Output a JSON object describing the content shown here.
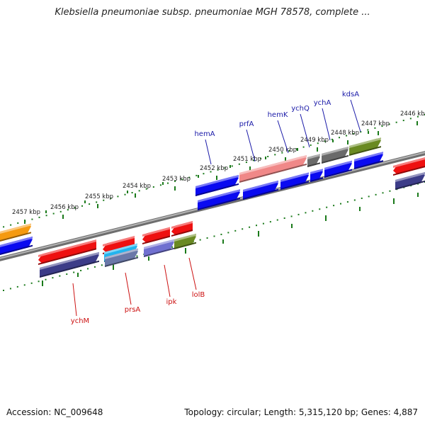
{
  "title": "Klebsiella pneumoniae subsp. pneumoniae MGH 78578, complete ...",
  "footer": {
    "accession": "Accession: NC_009648",
    "summary": "Topology: circular; Length: 5,315,120 bp; Genes: 4,887"
  },
  "colors": {
    "forward_label": "#1a1aa8",
    "reverse_label": "#cc1111",
    "tick": "#1a7a1a",
    "backbone": "#8a8a8a",
    "blue": "#0a0af0",
    "red": "#ee1111",
    "salmon": "#f08888",
    "gray": "#6a6a6a",
    "olive": "#6a8a22",
    "orange": "#f59a10",
    "navy": "#3c3c88",
    "cyan": "#22b4ee",
    "steel": "#6a78a8",
    "violet": "#7070d0"
  },
  "ticks": {
    "outer": [
      "2446 kbp",
      "2447 kbp",
      "2448 kbp",
      "2449 kbp",
      "2450 kbp",
      "2451 kbp",
      "2452 kbp"
    ],
    "inner": [
      "2453 kbp",
      "2454 kbp",
      "2455 kbp",
      "2456 kbp",
      "2457 kbp"
    ]
  },
  "forward_genes": [
    "hemA",
    "prfA",
    "hemK",
    "ychQ",
    "ychA",
    "kdsA"
  ],
  "reverse_genes": [
    "ychM",
    "prsA",
    "ipk",
    "lolB"
  ]
}
